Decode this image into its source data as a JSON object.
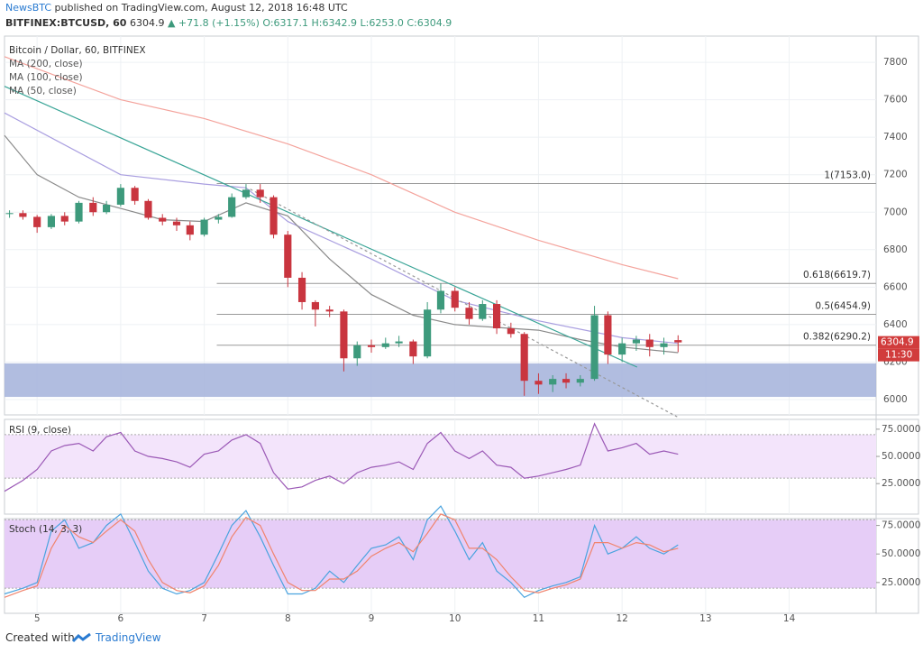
{
  "header": {
    "author": "NewsBTC",
    "published": "published on TradingView.com, August 12, 2018 16:48 UTC",
    "symbol": "BITFINEX:BTCUSD, 60",
    "last": "6304.9",
    "change": "▲ +71.8 (+1.15%)",
    "open": "O:6317.1",
    "high": "H:6342.9",
    "low": "L:6253.0",
    "close": "C:6304.9"
  },
  "chart_data": [
    {
      "type": "candlestick",
      "title": "Bitcoin / Dollar, 60, BITFINEX",
      "up_color": "#3d9a7c",
      "down_color": "#c9353f",
      "x": [
        4.67,
        4.83,
        5,
        5.17,
        5.33,
        5.5,
        5.67,
        5.83,
        6,
        6.17,
        6.33,
        6.5,
        6.67,
        6.83,
        7,
        7.17,
        7.33,
        7.5,
        7.67,
        7.83,
        8,
        8.17,
        8.33,
        8.5,
        8.67,
        8.83,
        9,
        9.17,
        9.33,
        9.5,
        9.67,
        9.83,
        10,
        10.17,
        10.33,
        10.5,
        10.67,
        10.83,
        11,
        11.17,
        11.33,
        11.5,
        11.67,
        11.83,
        12,
        12.17,
        12.33,
        12.5,
        12.67
      ],
      "open": [
        6990,
        6995,
        6975,
        6920,
        6980,
        6950,
        7050,
        7000,
        7040,
        7130,
        7060,
        6970,
        6950,
        6930,
        6880,
        6960,
        6975,
        7080,
        7120,
        7080,
        6880,
        6650,
        6520,
        6480,
        6470,
        6220,
        6290,
        6280,
        6300,
        6310,
        6230,
        6480,
        6580,
        6490,
        6430,
        6510,
        6380,
        6350,
        6100,
        6080,
        6110,
        6090,
        6110,
        6450,
        6240,
        6300,
        6320,
        6280,
        6317.1
      ],
      "high": [
        7010,
        7010,
        6985,
        6990,
        7000,
        7060,
        7080,
        7060,
        7150,
        7140,
        7070,
        6990,
        6970,
        6950,
        6970,
        6990,
        7100,
        7150,
        7150,
        7090,
        6900,
        6680,
        6530,
        6500,
        6480,
        6310,
        6320,
        6330,
        6340,
        6320,
        6520,
        6620,
        6600,
        6520,
        6530,
        6530,
        6410,
        6360,
        6140,
        6130,
        6140,
        6130,
        6500,
        6470,
        6330,
        6340,
        6350,
        6330,
        6342.9
      ],
      "low": [
        6970,
        6960,
        6890,
        6910,
        6930,
        6940,
        6980,
        6990,
        7030,
        7040,
        6960,
        6930,
        6900,
        6850,
        6870,
        6940,
        6970,
        7070,
        7050,
        6860,
        6600,
        6480,
        6390,
        6440,
        6150,
        6180,
        6250,
        6270,
        6280,
        6190,
        6220,
        6460,
        6470,
        6400,
        6420,
        6350,
        6330,
        6020,
        6030,
        6040,
        6060,
        6070,
        6100,
        6190,
        6200,
        6260,
        6230,
        6240,
        6253
      ],
      "close": [
        6995,
        6975,
        6920,
        6980,
        6950,
        7050,
        7000,
        7040,
        7130,
        7060,
        6970,
        6950,
        6930,
        6880,
        6960,
        6975,
        7080,
        7120,
        7080,
        6880,
        6650,
        6520,
        6480,
        6470,
        6220,
        6290,
        6280,
        6300,
        6310,
        6230,
        6480,
        6580,
        6490,
        6430,
        6510,
        6380,
        6350,
        6100,
        6080,
        6110,
        6090,
        6110,
        6450,
        6240,
        6300,
        6320,
        6280,
        6300,
        6304.9
      ],
      "series": [
        {
          "name": "MA (200, close)",
          "color": "#f4a39c",
          "x": [
            4.61,
            6,
            7,
            8,
            9,
            10,
            11,
            12,
            12.67
          ],
          "values": [
            7830,
            7600,
            7500,
            7364,
            7200,
            7000,
            6850,
            6720,
            6645
          ]
        },
        {
          "name": "MA (100, close)",
          "color": "#a99ee0",
          "x": [
            4.61,
            6,
            7,
            7.5,
            8,
            9,
            10,
            11,
            12,
            12.67
          ],
          "values": [
            7530,
            7200,
            7150,
            7130,
            6950,
            6750,
            6530,
            6420,
            6330,
            6300
          ]
        },
        {
          "name": "MA (50, close)",
          "color": "#8a8a8a",
          "x": [
            4.61,
            5,
            5.5,
            6,
            6.5,
            7,
            7.5,
            8,
            8.5,
            9,
            9.5,
            10,
            11,
            11.5,
            12,
            12.67
          ],
          "values": [
            7410,
            7200,
            7080,
            7020,
            6960,
            6950,
            7050,
            6980,
            6750,
            6560,
            6450,
            6400,
            6370,
            6320,
            6280,
            6250
          ]
        }
      ],
      "trendlines": [
        {
          "color": "#3aa597",
          "dashed": false,
          "x": [
            4.61,
            12.18
          ],
          "values": [
            7672,
            6173
          ]
        },
        {
          "color": "#999999",
          "dashed": true,
          "x": [
            7.55,
            12.66
          ],
          "values": [
            7123,
            5908
          ]
        }
      ],
      "fib_levels": [
        {
          "value": 7153,
          "label": "1(7153.0)"
        },
        {
          "value": 6619.7,
          "label": "0.618(6619.7)"
        },
        {
          "value": 6454.9,
          "label": "0.5(6454.9)"
        },
        {
          "value": 6290.2,
          "label": "0.382(6290.2)"
        }
      ],
      "fib_start": 7.15,
      "zone": {
        "from": 6014,
        "to": 6193,
        "color": "#a9b6dd"
      },
      "last_price": 6304.9,
      "countdown": "11:30",
      "xlim": [
        4.61,
        15.04
      ],
      "xticks": [
        5,
        6,
        7,
        8,
        9,
        10,
        11,
        12,
        13,
        14
      ],
      "ylim": [
        5918,
        7940
      ],
      "yticks": [
        6000,
        6200,
        6400,
        6600,
        6800,
        7000,
        7200,
        7400,
        7600,
        7800
      ]
    },
    {
      "type": "line",
      "title": "RSI (9, close)",
      "band": [
        30,
        70
      ],
      "band_color": "#f3e4fb",
      "x": [
        4.61,
        4.83,
        5,
        5.17,
        5.33,
        5.5,
        5.67,
        5.83,
        6,
        6.17,
        6.33,
        6.5,
        6.67,
        6.83,
        7,
        7.17,
        7.33,
        7.5,
        7.67,
        7.83,
        8,
        8.17,
        8.33,
        8.5,
        8.67,
        8.83,
        9,
        9.17,
        9.33,
        9.5,
        9.67,
        9.83,
        10,
        10.17,
        10.33,
        10.5,
        10.67,
        10.83,
        11,
        11.17,
        11.33,
        11.5,
        11.67,
        11.83,
        12,
        12.17,
        12.33,
        12.5,
        12.67
      ],
      "series": [
        {
          "color": "#9b59b6",
          "values": [
            18,
            28,
            38,
            55,
            60,
            62,
            55,
            68,
            72,
            55,
            50,
            48,
            45,
            40,
            52,
            55,
            65,
            70,
            62,
            35,
            20,
            22,
            28,
            32,
            25,
            35,
            40,
            42,
            45,
            38,
            62,
            72,
            55,
            48,
            55,
            42,
            40,
            30,
            32,
            35,
            38,
            42,
            80,
            55,
            58,
            62,
            52,
            55,
            52
          ]
        }
      ],
      "ylim": [
        -3,
        84
      ],
      "yticks": [
        {
          "value": 25,
          "label": "25.0000"
        },
        {
          "value": 50,
          "label": "50.0000"
        },
        {
          "value": 75,
          "label": "75.0000"
        }
      ]
    },
    {
      "type": "line",
      "title": "Stoch (14, 3, 3)",
      "band": [
        20,
        80
      ],
      "band_color": "#e6cdf7",
      "x": [
        4.61,
        4.83,
        5,
        5.17,
        5.33,
        5.5,
        5.67,
        5.83,
        6,
        6.17,
        6.33,
        6.5,
        6.67,
        6.83,
        7,
        7.17,
        7.33,
        7.5,
        7.67,
        7.83,
        8,
        8.17,
        8.33,
        8.5,
        8.67,
        8.83,
        9,
        9.17,
        9.33,
        9.5,
        9.67,
        9.83,
        10,
        10.17,
        10.33,
        10.5,
        10.67,
        10.83,
        11,
        11.17,
        11.33,
        11.5,
        11.67,
        11.83,
        12,
        12.17,
        12.33,
        12.5,
        12.67
      ],
      "series": [
        {
          "color": "#4aa3df",
          "values": [
            15,
            20,
            25,
            70,
            80,
            55,
            60,
            75,
            85,
            60,
            35,
            20,
            15,
            18,
            25,
            50,
            75,
            88,
            65,
            40,
            15,
            15,
            20,
            35,
            25,
            40,
            55,
            58,
            65,
            45,
            80,
            92,
            70,
            45,
            60,
            35,
            25,
            12,
            18,
            22,
            25,
            30,
            75,
            50,
            55,
            65,
            55,
            50,
            58
          ]
        },
        {
          "color": "#f0846e",
          "values": [
            12,
            18,
            22,
            55,
            75,
            65,
            60,
            70,
            80,
            70,
            45,
            25,
            18,
            16,
            22,
            40,
            65,
            82,
            75,
            50,
            25,
            18,
            18,
            28,
            28,
            35,
            48,
            55,
            60,
            52,
            68,
            85,
            80,
            55,
            55,
            45,
            30,
            18,
            16,
            20,
            23,
            28,
            60,
            60,
            55,
            60,
            58,
            52,
            55
          ]
        }
      ],
      "ylim": [
        -2,
        81
      ],
      "yticks": [
        {
          "value": 25,
          "label": "25.0000"
        },
        {
          "value": 50,
          "label": "50.0000"
        },
        {
          "value": 75,
          "label": "75.0000"
        }
      ]
    }
  ],
  "footer": {
    "created": "Created with",
    "brand": "TradingView"
  }
}
